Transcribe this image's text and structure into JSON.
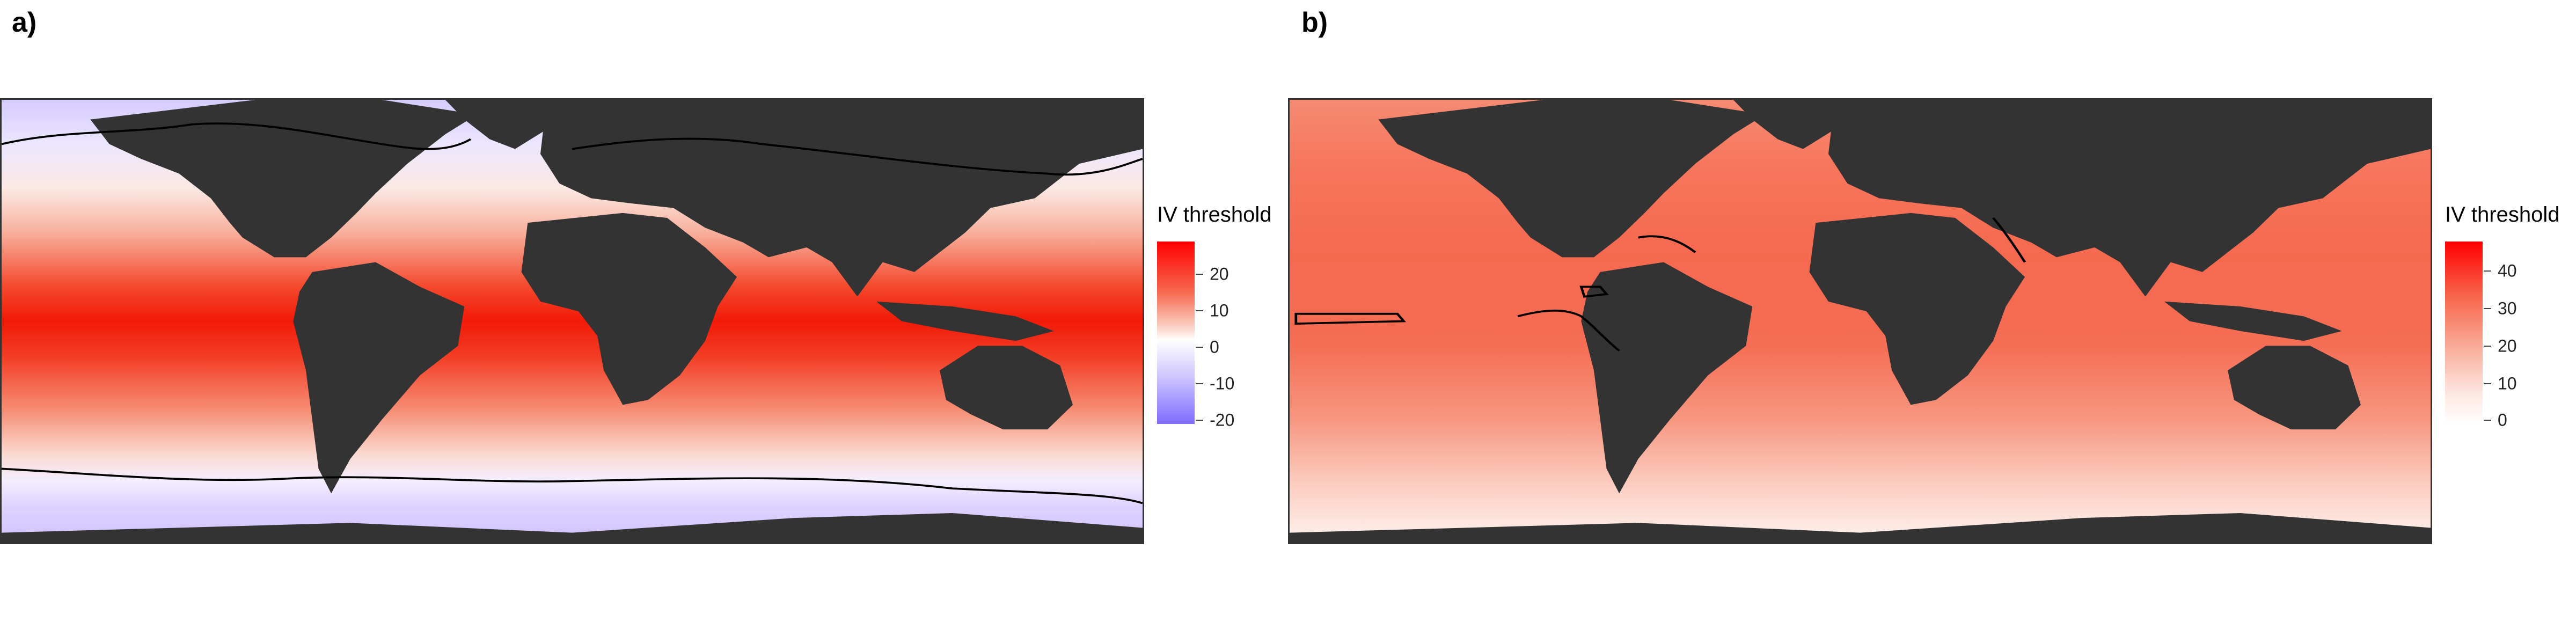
{
  "panels": {
    "a": {
      "label": "a)"
    },
    "b": {
      "label": "b)"
    }
  },
  "legends": {
    "a": {
      "title": "IV threshold",
      "ticks": [
        "20",
        "10",
        "0",
        "-10",
        "-20"
      ],
      "tick_values": [
        20,
        10,
        0,
        -10,
        -20
      ],
      "range": [
        -23,
        27
      ]
    },
    "b": {
      "title": "IV threshold",
      "ticks": [
        "40",
        "30",
        "20",
        "10",
        "0"
      ],
      "tick_values": [
        40,
        30,
        20,
        10,
        0
      ],
      "range": [
        -2,
        48
      ]
    }
  },
  "colors": {
    "land": "#333333",
    "high": "#ff0000",
    "zero": "#ffffff",
    "low": "#7f6bff",
    "contour": "#000000"
  }
}
